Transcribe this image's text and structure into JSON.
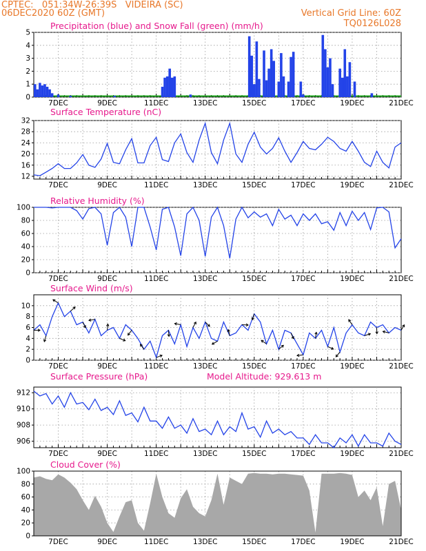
{
  "header": {
    "line1": "CPTEC:   051:34W-26:39S   VIDEIRA (SC)",
    "line2": "06DEC2020 60Z (GMT)",
    "right1": "Vertical Grid Line: 60Z",
    "right2": "TQ0126L028"
  },
  "colors": {
    "header": "#e8782a",
    "title": "#e6198c",
    "line": "#2343e8",
    "bar": "#2343e8",
    "snow": "#22aa22",
    "cloud": "#a8a8a8",
    "grid": "#9a9a9a"
  },
  "x_ticks": [
    "7DEC",
    "9DEC",
    "11DEC",
    "13DEC",
    "15DEC",
    "17DEC",
    "19DEC",
    "21DEC"
  ],
  "chart_data": [
    {
      "id": "precip",
      "type": "bar",
      "title": "Precipitation (blue) and Snow Fall (green) (mm/h)",
      "ylim": [
        0,
        5
      ],
      "yticks": [
        0,
        1,
        2,
        3,
        4,
        5
      ],
      "grid": true,
      "x_unit": "day of December 2020 (GMT)",
      "series": [
        {
          "name": "Precipitation",
          "color": "#2343e8",
          "x": [
            6.05,
            6.15,
            6.25,
            6.35,
            6.45,
            6.55,
            6.65,
            6.75,
            7.0,
            7.5,
            9.3,
            11.25,
            11.35,
            11.45,
            11.55,
            11.65,
            11.75,
            12.4,
            14.8,
            14.9,
            15.0,
            15.1,
            15.2,
            15.4,
            15.5,
            15.6,
            15.7,
            15.8,
            16.0,
            16.1,
            16.2,
            16.4,
            16.5,
            16.6,
            16.9,
            17.0,
            17.8,
            17.9,
            18.0,
            18.1,
            18.2,
            18.5,
            18.6,
            18.7,
            18.8,
            18.9,
            19.1,
            19.8
          ],
          "values": [
            1.0,
            0.6,
            1.1,
            0.9,
            1.0,
            0.8,
            0.6,
            0.3,
            0.2,
            0.1,
            0.1,
            0.8,
            1.5,
            1.6,
            2.2,
            1.5,
            1.6,
            0.2,
            4.7,
            3.2,
            1.0,
            4.3,
            1.4,
            3.6,
            1.3,
            2.2,
            3.7,
            2.8,
            1.2,
            3.4,
            1.6,
            1.2,
            3.1,
            3.5,
            1.2,
            0.2,
            4.8,
            3.7,
            2.3,
            3.0,
            1.0,
            2.2,
            1.5,
            3.7,
            1.6,
            2.7,
            1.2,
            0.3
          ]
        }
      ]
    },
    {
      "id": "temperature",
      "type": "line",
      "title": "Surface Temperature (nC)",
      "ylim": [
        11,
        32
      ],
      "yticks": [
        12,
        16,
        20,
        24,
        28,
        32
      ],
      "grid": true,
      "x": [
        6,
        6.25,
        6.5,
        6.75,
        7,
        7.25,
        7.5,
        7.75,
        8,
        8.25,
        8.5,
        8.75,
        9,
        9.25,
        9.5,
        9.75,
        10,
        10.25,
        10.5,
        10.75,
        11,
        11.25,
        11.5,
        11.75,
        12,
        12.25,
        12.5,
        12.75,
        13,
        13.25,
        13.5,
        13.75,
        14,
        14.25,
        14.5,
        14.75,
        15,
        15.25,
        15.5,
        15.75,
        16,
        16.25,
        16.5,
        16.75,
        17,
        17.25,
        17.5,
        17.75,
        18,
        18.25,
        18.5,
        18.75,
        19,
        19.25,
        19.5,
        19.75,
        20,
        20.25,
        20.5,
        20.75,
        21
      ],
      "series": [
        {
          "name": "",
          "values": [
            12.5,
            12.2,
            13.5,
            14.8,
            16.5,
            14.8,
            14.8,
            16.8,
            19.8,
            16.0,
            15.2,
            18.2,
            23.8,
            17.0,
            16.5,
            21.5,
            25.5,
            16.8,
            16.8,
            23.0,
            26.0,
            18.0,
            17.3,
            24.0,
            27.2,
            20.5,
            17.0,
            25.0,
            31.0,
            20.5,
            16.5,
            25.0,
            31.0,
            20.0,
            17.0,
            23.5,
            27.8,
            22.5,
            20.0,
            22.0,
            25.8,
            21.0,
            17.0,
            20.5,
            24.5,
            22.0,
            21.5,
            23.5,
            26.0,
            24.5,
            22.0,
            21.0,
            24.5,
            21.0,
            17.0,
            15.5,
            21.0,
            17.0,
            15.0,
            22.5,
            24.0
          ]
        }
      ]
    },
    {
      "id": "humidity",
      "type": "line",
      "title": "Relative Humidity (%)",
      "ylim": [
        0,
        100
      ],
      "yticks": [
        0,
        20,
        40,
        60,
        80,
        100
      ],
      "grid": true,
      "x": [
        6,
        6.25,
        6.5,
        6.75,
        7,
        7.25,
        7.5,
        7.75,
        8,
        8.25,
        8.5,
        8.75,
        9,
        9.25,
        9.5,
        9.75,
        10,
        10.25,
        10.5,
        10.75,
        11,
        11.25,
        11.5,
        11.75,
        12,
        12.25,
        12.5,
        12.75,
        13,
        13.25,
        13.5,
        13.75,
        14,
        14.25,
        14.5,
        14.75,
        15,
        15.25,
        15.5,
        15.75,
        16,
        16.25,
        16.5,
        16.75,
        17,
        17.25,
        17.5,
        17.75,
        18,
        18.25,
        18.5,
        18.75,
        19,
        19.25,
        19.5,
        19.75,
        20,
        20.25,
        20.5,
        20.75,
        21
      ],
      "series": [
        {
          "name": "",
          "values": [
            100,
            100,
            100,
            99,
            100,
            100,
            100,
            95,
            82,
            98,
            100,
            90,
            42,
            92,
            100,
            85,
            40,
            100,
            100,
            70,
            35,
            97,
            100,
            70,
            26,
            90,
            100,
            80,
            25,
            85,
            100,
            72,
            22,
            82,
            100,
            84,
            93,
            85,
            90,
            72,
            97,
            82,
            88,
            72,
            90,
            80,
            90,
            75,
            78,
            65,
            92,
            72,
            94,
            80,
            92,
            66,
            99,
            100,
            93,
            38,
            52
          ]
        }
      ]
    },
    {
      "id": "wind",
      "type": "line",
      "title": "Surface Wind (m/s)",
      "ylim": [
        0,
        12
      ],
      "yticks": [
        0,
        2,
        4,
        6,
        8,
        10
      ],
      "grid": true,
      "x": [
        6,
        6.25,
        6.5,
        6.75,
        7,
        7.25,
        7.5,
        7.75,
        8,
        8.25,
        8.5,
        8.75,
        9,
        9.25,
        9.5,
        9.75,
        10,
        10.25,
        10.5,
        10.75,
        11,
        11.25,
        11.5,
        11.75,
        12,
        12.25,
        12.5,
        12.75,
        13,
        13.25,
        13.5,
        13.75,
        14,
        14.25,
        14.5,
        14.75,
        15,
        15.25,
        15.5,
        15.75,
        16,
        16.25,
        16.5,
        16.75,
        17,
        17.25,
        17.5,
        17.75,
        18,
        18.25,
        18.5,
        18.75,
        19,
        19.25,
        19.5,
        19.75,
        20,
        20.25,
        20.5,
        20.75,
        21
      ],
      "series": [
        {
          "name": "",
          "values": [
            5.5,
            6.5,
            4.5,
            8.0,
            10.5,
            8.0,
            9.0,
            6.5,
            7.0,
            5.0,
            7.5,
            4.5,
            5.5,
            6.0,
            4.0,
            6.5,
            5.5,
            4.0,
            2.0,
            3.5,
            0.5,
            4.5,
            5.5,
            3.0,
            6.5,
            2.5,
            6.0,
            4.0,
            7.0,
            4.0,
            3.5,
            7.0,
            4.5,
            5.0,
            6.5,
            5.5,
            8.5,
            7.0,
            3.0,
            5.5,
            2.0,
            5.5,
            5.0,
            3.0,
            1.0,
            5.0,
            4.0,
            5.5,
            2.5,
            6.0,
            1.5,
            5.0,
            6.5,
            5.0,
            4.5,
            7.0,
            6.0,
            6.5,
            5.0,
            6.0,
            5.5
          ]
        }
      ]
    },
    {
      "id": "pressure",
      "type": "line",
      "title": "Surface Pressure (hPa)",
      "annotation": "Model Altitude: 929.613 m",
      "ylim": [
        905.2,
        912.7
      ],
      "yticks": [
        906,
        908,
        910,
        912
      ],
      "grid": true,
      "x": [
        6,
        6.25,
        6.5,
        6.75,
        7,
        7.25,
        7.5,
        7.75,
        8,
        8.25,
        8.5,
        8.75,
        9,
        9.25,
        9.5,
        9.75,
        10,
        10.25,
        10.5,
        10.75,
        11,
        11.25,
        11.5,
        11.75,
        12,
        12.25,
        12.5,
        12.75,
        13,
        13.25,
        13.5,
        13.75,
        14,
        14.25,
        14.5,
        14.75,
        15,
        15.25,
        15.5,
        15.75,
        16,
        16.25,
        16.5,
        16.75,
        17,
        17.25,
        17.5,
        17.75,
        18,
        18.25,
        18.5,
        18.75,
        19,
        19.25,
        19.5,
        19.75,
        20,
        20.25,
        20.5,
        20.75,
        21
      ],
      "series": [
        {
          "name": "",
          "values": [
            912.2,
            911.6,
            911.9,
            910.6,
            911.6,
            910.2,
            912.0,
            910.6,
            910.8,
            909.9,
            911.2,
            909.8,
            910.2,
            909.3,
            911.0,
            909.2,
            909.5,
            908.4,
            910.2,
            908.5,
            908.5,
            907.6,
            909.0,
            907.6,
            908.0,
            907.0,
            908.8,
            907.2,
            907.5,
            906.8,
            908.5,
            906.8,
            907.8,
            907.2,
            909.5,
            907.5,
            907.8,
            906.5,
            908.5,
            907.0,
            907.5,
            906.8,
            907.2,
            906.4,
            906.4,
            905.6,
            906.8,
            905.8,
            905.8,
            905.2,
            906.4,
            905.8,
            906.8,
            905.4,
            906.8,
            905.8,
            905.8,
            905.4,
            907.0,
            906.0,
            905.6
          ]
        }
      ]
    },
    {
      "id": "cloud",
      "type": "area",
      "title": "Cloud Cover (%)",
      "ylim": [
        0,
        100
      ],
      "yticks": [
        0,
        20,
        40,
        60,
        80,
        100
      ],
      "grid": true,
      "x": [
        6,
        6.25,
        6.5,
        6.75,
        7,
        7.25,
        7.5,
        7.75,
        8,
        8.25,
        8.5,
        8.75,
        9,
        9.25,
        9.5,
        9.75,
        10,
        10.25,
        10.5,
        10.75,
        11,
        11.25,
        11.5,
        11.75,
        12,
        12.25,
        12.5,
        12.75,
        13,
        13.25,
        13.5,
        13.75,
        14,
        14.25,
        14.5,
        14.75,
        15,
        15.25,
        15.5,
        15.75,
        16,
        16.25,
        16.5,
        16.75,
        17,
        17.25,
        17.5,
        17.75,
        18,
        18.25,
        18.5,
        18.75,
        19,
        19.25,
        19.5,
        19.75,
        20,
        20.25,
        20.5,
        20.75,
        21
      ],
      "series": [
        {
          "name": "",
          "values": [
            90,
            92,
            88,
            86,
            95,
            90,
            82,
            72,
            55,
            40,
            62,
            45,
            20,
            6,
            30,
            52,
            55,
            20,
            8,
            50,
            96,
            60,
            35,
            28,
            58,
            72,
            45,
            35,
            30,
            55,
            96,
            48,
            90,
            85,
            80,
            96,
            97,
            96,
            96,
            95,
            96,
            96,
            95,
            94,
            93,
            70,
            5,
            96,
            96,
            96,
            97,
            96,
            94,
            60,
            70,
            55,
            75,
            15,
            80,
            85,
            40
          ]
        }
      ]
    }
  ]
}
